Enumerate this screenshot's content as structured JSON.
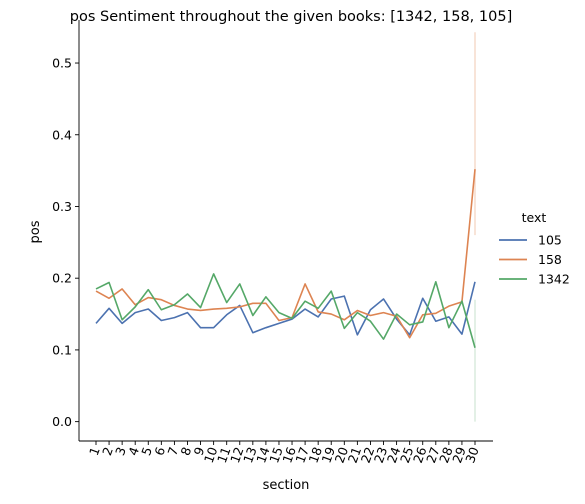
{
  "chart_data": {
    "type": "line",
    "title": "pos Sentiment throughout the given books: [1342, 158, 105]",
    "xlabel": "section",
    "ylabel": "pos",
    "categories": [
      "1",
      "2",
      "3",
      "4",
      "5",
      "6",
      "7",
      "8",
      "9",
      "10",
      "11",
      "12",
      "13",
      "14",
      "15",
      "16",
      "17",
      "18",
      "19",
      "20",
      "21",
      "22",
      "23",
      "24",
      "25",
      "26",
      "27",
      "28",
      "29",
      "30"
    ],
    "yticks": [
      "0.0",
      "0.1",
      "0.2",
      "0.3",
      "0.4",
      "0.5"
    ],
    "ylim": [
      -0.027,
      0.56
    ],
    "grid": false,
    "legend": {
      "title": "text",
      "position": "right"
    },
    "series": [
      {
        "name": "105",
        "color": "#4c72b0",
        "values": [
          0.137,
          0.158,
          0.137,
          0.152,
          0.157,
          0.141,
          0.145,
          0.152,
          0.131,
          0.131,
          0.149,
          0.162,
          0.124,
          0.131,
          0.137,
          0.143,
          0.157,
          0.146,
          0.171,
          0.175,
          0.121,
          0.156,
          0.171,
          0.143,
          0.121,
          0.172,
          0.14,
          0.146,
          0.122,
          0.195
        ]
      },
      {
        "name": "158",
        "color": "#dd8452",
        "values": [
          0.182,
          0.172,
          0.185,
          0.163,
          0.173,
          0.17,
          0.162,
          0.157,
          0.155,
          0.157,
          0.158,
          0.16,
          0.165,
          0.165,
          0.141,
          0.145,
          0.192,
          0.153,
          0.15,
          0.142,
          0.155,
          0.148,
          0.152,
          0.147,
          0.117,
          0.149,
          0.151,
          0.161,
          0.167,
          0.352
        ]
      },
      {
        "name": "1342",
        "color": "#55a868",
        "values": [
          0.185,
          0.194,
          0.142,
          0.16,
          0.184,
          0.156,
          0.163,
          0.178,
          0.159,
          0.206,
          0.166,
          0.192,
          0.148,
          0.174,
          0.152,
          0.144,
          0.168,
          0.158,
          0.182,
          0.13,
          0.152,
          0.14,
          0.115,
          0.15,
          0.135,
          0.139,
          0.195,
          0.131,
          0.168,
          0.103
        ]
      }
    ]
  }
}
